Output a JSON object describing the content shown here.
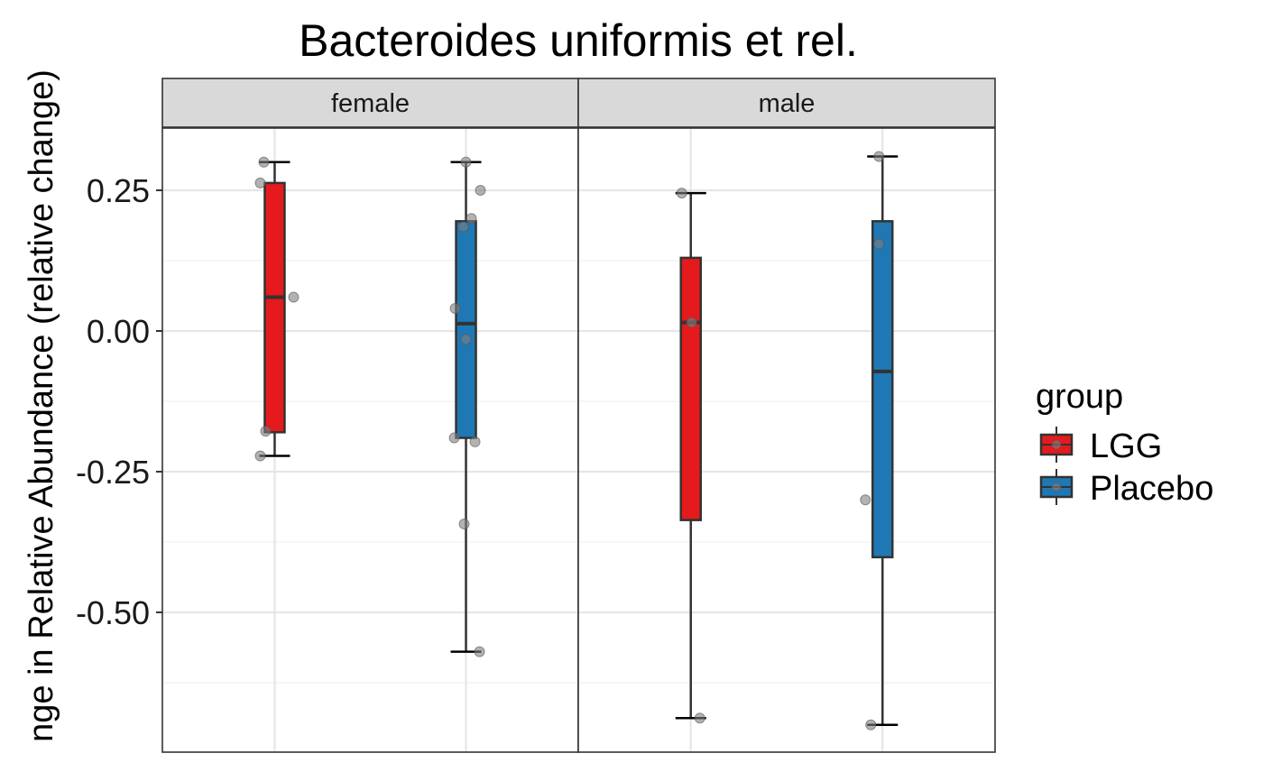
{
  "chart_data": {
    "type": "boxplot",
    "title": "Bacteroides uniformis et rel.",
    "ylabel": "nge in Relative Abundance (relative change)",
    "xlabel": "",
    "ylim": [
      -0.75,
      0.36
    ],
    "yticks": [
      0.25,
      0.0,
      -0.25,
      -0.5
    ],
    "ytick_labels": [
      "0.25",
      "0.00",
      "-0.25",
      "-0.50"
    ],
    "grid": true,
    "legend": {
      "title": "group",
      "position": "right",
      "entries": [
        "LGG",
        "Placebo"
      ]
    },
    "colors": {
      "LGG": "#e41a1c",
      "Placebo": "#1f78b4"
    },
    "facets": [
      {
        "label": "female",
        "boxes": [
          {
            "group": "LGG",
            "whisker_low": -0.222,
            "q1": -0.18,
            "median": 0.06,
            "q3": 0.263,
            "whisker_high": 0.3,
            "points": [
              0.263,
              0.06,
              0.3,
              -0.178,
              -0.222
            ]
          },
          {
            "group": "Placebo",
            "whisker_low": -0.57,
            "q1": -0.19,
            "median": 0.013,
            "q3": 0.195,
            "whisker_high": 0.3,
            "points": [
              0.3,
              0.25,
              0.2,
              0.185,
              0.04,
              -0.015,
              -0.19,
              -0.197,
              -0.343,
              -0.57
            ]
          }
        ]
      },
      {
        "label": "male",
        "boxes": [
          {
            "group": "LGG",
            "whisker_low": -0.688,
            "q1": -0.336,
            "median": 0.015,
            "q3": 0.13,
            "whisker_high": 0.245,
            "points": [
              0.245,
              0.015,
              -0.688
            ]
          },
          {
            "group": "Placebo",
            "whisker_low": -0.7,
            "q1": -0.402,
            "median": -0.072,
            "q3": 0.195,
            "whisker_high": 0.31,
            "points": [
              0.31,
              0.155,
              -0.3,
              -0.7
            ]
          }
        ]
      }
    ]
  }
}
